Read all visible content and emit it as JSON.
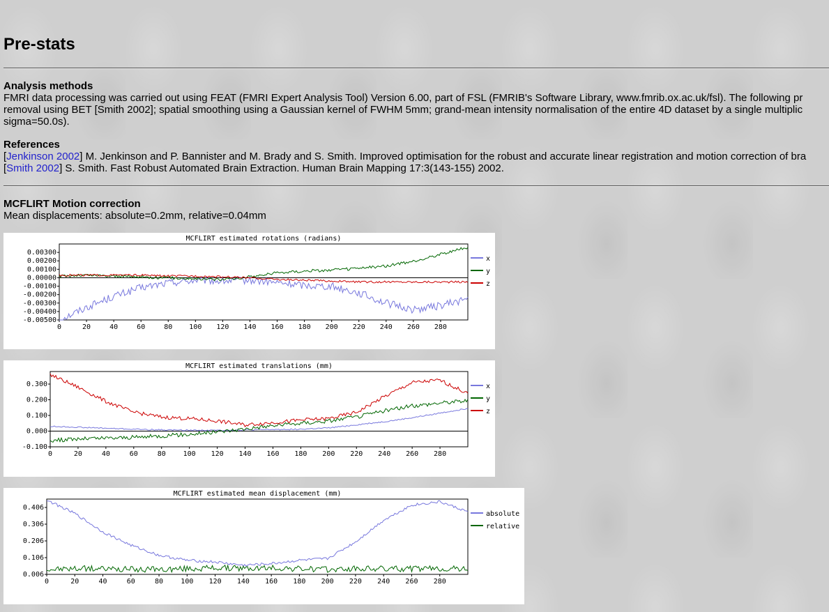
{
  "page": {
    "title": "Pre-stats",
    "analysis_title": "Analysis methods",
    "analysis_lines": [
      "FMRI data processing was carried out using FEAT (FMRI Expert Analysis Tool) Version 6.00, part of FSL (FMRIB's Software Library, www.fmrib.ox.ac.uk/fsl). The following pr",
      "removal using BET [Smith 2002]; spatial smoothing using a Gaussian kernel of FWHM 5mm; grand-mean intensity normalisation of the entire 4D dataset by a single multiplic",
      "sigma=50.0s)."
    ],
    "references_title": "References",
    "ref1_link": "Jenkinson 2002",
    "ref1_text": "] M. Jenkinson and P. Bannister and M. Brady and S. Smith. Improved optimisation for the robust and accurate linear registration and motion correction of bra",
    "ref2_link": "Smith 2002",
    "ref2_text": "] S. Smith. Fast Robust Automated Brain Extraction. Human Brain Mapping 17:3(143-155) 2002.",
    "bracket_open": "[",
    "mcflirt_title": "MCFLIRT Motion correction",
    "mean_disp": "Mean displacements: absolute=0.2mm, relative=0.04mm"
  },
  "chart_data": [
    {
      "type": "line",
      "title": "MCFLIRT estimated rotations (radians)",
      "xlim": [
        0,
        300
      ],
      "ylim": [
        -0.005,
        0.004
      ],
      "xticks": [
        0,
        20,
        40,
        60,
        80,
        100,
        120,
        140,
        160,
        180,
        200,
        220,
        240,
        260,
        280
      ],
      "yticks": [
        -0.005,
        -0.004,
        -0.003,
        -0.002,
        -0.001,
        0,
        0.001,
        0.002,
        0.003
      ],
      "ytick_labels": [
        "-0.00500",
        "-0.00400",
        "-0.00300",
        "-0.00200",
        "-0.00100",
        "0.00000",
        "0.00100",
        "0.00200",
        "0.00300"
      ],
      "legend_placement": "right",
      "series": [
        {
          "name": "x",
          "color": "#7777dd",
          "noise": 0.00045,
          "x": [
            0,
            20,
            40,
            60,
            80,
            100,
            120,
            140,
            160,
            180,
            200,
            220,
            240,
            260,
            280,
            300
          ],
          "y": [
            -0.005,
            -0.0035,
            -0.0022,
            -0.0012,
            -0.0006,
            -0.0003,
            -0.0004,
            -0.0003,
            -0.0006,
            -0.0009,
            -0.001,
            -0.0018,
            -0.003,
            -0.0038,
            -0.0033,
            -0.0025
          ]
        },
        {
          "name": "y",
          "color": "#006600",
          "noise": 0.00018,
          "x": [
            0,
            20,
            40,
            60,
            80,
            100,
            120,
            140,
            160,
            180,
            200,
            220,
            240,
            260,
            280,
            300
          ],
          "y": [
            0.0002,
            0.0003,
            0.0002,
            0.0001,
            0.0,
            -0.0001,
            -0.0002,
            0.0001,
            0.0006,
            0.0008,
            0.0009,
            0.0011,
            0.0014,
            0.0019,
            0.0028,
            0.0036
          ]
        },
        {
          "name": "z",
          "color": "#cc0000",
          "noise": 0.00012,
          "x": [
            0,
            20,
            40,
            60,
            80,
            100,
            120,
            140,
            160,
            180,
            200,
            220,
            240,
            260,
            280,
            300
          ],
          "y": [
            0.0003,
            0.0003,
            0.0003,
            0.0003,
            0.0002,
            0.0002,
            0.0001,
            0.0,
            -0.0002,
            -0.0003,
            -0.0004,
            -0.0005,
            -0.0005,
            -0.0005,
            -0.0005,
            -0.0005
          ]
        }
      ]
    },
    {
      "type": "line",
      "title": "MCFLIRT estimated translations (mm)",
      "xlim": [
        0,
        300
      ],
      "ylim": [
        -0.1,
        0.38
      ],
      "xticks": [
        0,
        20,
        40,
        60,
        80,
        100,
        120,
        140,
        160,
        180,
        200,
        220,
        240,
        260,
        280
      ],
      "yticks": [
        -0.1,
        0,
        0.1,
        0.2,
        0.3
      ],
      "ytick_labels": [
        "-0.100",
        "0.000",
        "0.100",
        "0.200",
        "0.300"
      ],
      "legend_placement": "right",
      "series": [
        {
          "name": "x",
          "color": "#7777dd",
          "noise": 0.004,
          "x": [
            0,
            20,
            40,
            60,
            80,
            100,
            120,
            140,
            160,
            180,
            200,
            220,
            240,
            260,
            280,
            300
          ],
          "y": [
            0.03,
            0.025,
            0.018,
            0.012,
            0.008,
            0.006,
            0.005,
            0.007,
            0.01,
            0.012,
            0.02,
            0.04,
            0.06,
            0.085,
            0.115,
            0.145
          ]
        },
        {
          "name": "y",
          "color": "#006600",
          "noise": 0.013,
          "x": [
            0,
            20,
            40,
            60,
            80,
            100,
            120,
            140,
            160,
            180,
            200,
            220,
            240,
            260,
            280,
            300
          ],
          "y": [
            -0.06,
            -0.05,
            -0.045,
            -0.04,
            -0.03,
            -0.02,
            -0.005,
            0.015,
            0.035,
            0.05,
            0.065,
            0.09,
            0.13,
            0.16,
            0.18,
            0.195
          ]
        },
        {
          "name": "z",
          "color": "#cc0000",
          "noise": 0.012,
          "x": [
            0,
            20,
            40,
            60,
            80,
            100,
            120,
            140,
            160,
            180,
            200,
            220,
            240,
            260,
            280,
            300
          ],
          "y": [
            0.36,
            0.28,
            0.19,
            0.12,
            0.09,
            0.08,
            0.065,
            0.04,
            0.055,
            0.07,
            0.08,
            0.12,
            0.22,
            0.31,
            0.325,
            0.24
          ]
        }
      ]
    },
    {
      "type": "line",
      "title": "MCFLIRT estimated mean displacement (mm)",
      "xlim": [
        0,
        300
      ],
      "ylim": [
        0.006,
        0.456
      ],
      "xticks": [
        0,
        20,
        40,
        60,
        80,
        100,
        120,
        140,
        160,
        180,
        200,
        220,
        240,
        260,
        280
      ],
      "yticks": [
        0.006,
        0.106,
        0.206,
        0.306,
        0.406
      ],
      "ytick_labels": [
        "0.006",
        "0.106",
        "0.206",
        "0.306",
        "0.406"
      ],
      "legend_placement": "right",
      "series": [
        {
          "name": "absolute",
          "color": "#7777dd",
          "noise": 0.008,
          "x": [
            0,
            20,
            40,
            60,
            80,
            100,
            120,
            140,
            160,
            180,
            200,
            220,
            240,
            260,
            280,
            300
          ],
          "y": [
            0.45,
            0.37,
            0.26,
            0.18,
            0.12,
            0.09,
            0.08,
            0.06,
            0.07,
            0.09,
            0.1,
            0.2,
            0.33,
            0.42,
            0.44,
            0.38
          ]
        },
        {
          "name": "relative",
          "color": "#006600",
          "noise": 0.018,
          "x": [
            0,
            20,
            40,
            60,
            80,
            100,
            120,
            140,
            160,
            180,
            200,
            220,
            240,
            260,
            280,
            300
          ],
          "y": [
            0.035,
            0.04,
            0.04,
            0.035,
            0.035,
            0.04,
            0.045,
            0.04,
            0.045,
            0.04,
            0.035,
            0.04,
            0.04,
            0.04,
            0.04,
            0.04
          ]
        }
      ]
    }
  ]
}
